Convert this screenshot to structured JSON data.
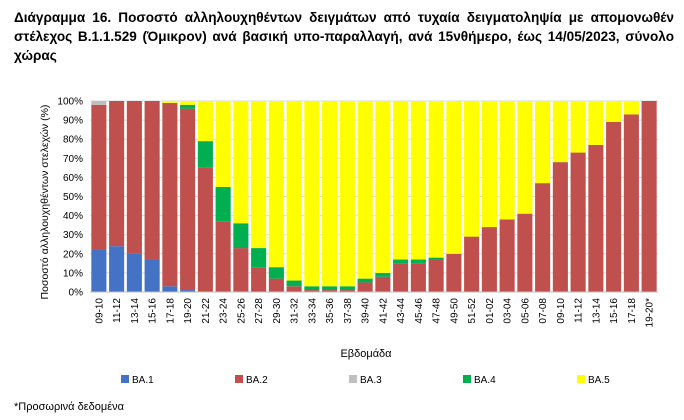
{
  "title": "Διάγραμμα 16. Ποσοστό αλληλουχηθέντων δειγμάτων από τυχαία δειγματοληψία με απομονωθέν στέλεχος Β.1.1.529 (Όμικρον) ανά βασική υπο-παραλλαγή, ανά 15νθήμερο, έως 14/05/2023, σύνολο χώρας",
  "footnote": "*Προσωρινά δεδομένα",
  "colors": {
    "BA.1": "#4472c4",
    "BA.2": "#c0504d",
    "BA.3": "#bfbfbf",
    "BA.4": "#00b050",
    "BA.5": "#ffff00"
  },
  "chart_data": {
    "type": "bar",
    "stacked": true,
    "xlabel": "Εβδομάδα",
    "ylabel": "Ποσοστό αλληλουχηθέντων στελεχών (%)",
    "ylim": [
      0,
      100
    ],
    "yticks": [
      "0%",
      "10%",
      "20%",
      "30%",
      "40%",
      "50%",
      "60%",
      "70%",
      "80%",
      "90%",
      "100%"
    ],
    "grid": true,
    "legend": "bottom",
    "categories": [
      "09-10",
      "11-12",
      "13-14",
      "15-16",
      "17-18",
      "19-20",
      "21-22",
      "23-24",
      "25-26",
      "27-28",
      "29-30",
      "31-32",
      "33-34",
      "35-36",
      "37-38",
      "39-40",
      "41-42",
      "43-44",
      "45-46",
      "47-48",
      "49-50",
      "51-52",
      "01-02",
      "03-04",
      "05-06",
      "07-08",
      "09-10",
      "11-12",
      "13-14",
      "15-16",
      "17-18",
      "19-20*"
    ],
    "series": [
      {
        "name": "BA.1",
        "values": [
          22,
          24,
          20,
          17,
          3,
          1,
          0,
          0,
          0,
          0,
          0,
          0,
          0,
          0,
          0,
          0,
          0,
          0,
          0,
          0,
          0,
          0,
          0,
          0,
          0,
          0,
          0,
          0,
          0,
          0,
          0,
          0
        ]
      },
      {
        "name": "BA.2",
        "values": [
          76,
          76,
          80,
          83,
          96,
          95,
          65,
          37,
          23,
          13,
          7,
          3,
          1,
          1,
          1,
          5,
          8,
          15,
          15,
          17,
          20,
          29,
          34,
          38,
          41,
          57,
          68,
          73,
          77,
          89,
          93,
          100
        ]
      },
      {
        "name": "BA.3",
        "values": [
          2,
          0,
          0,
          0,
          0,
          0,
          0,
          0,
          0,
          0,
          0,
          0,
          0,
          0,
          0,
          0,
          0,
          0,
          0,
          0,
          0,
          0,
          0,
          0,
          0,
          0,
          0,
          0,
          0,
          0,
          0,
          0
        ]
      },
      {
        "name": "BA.4",
        "values": [
          0,
          0,
          0,
          0,
          0,
          2,
          14,
          18,
          13,
          10,
          6,
          3,
          2,
          2,
          2,
          2,
          2,
          2,
          2,
          1,
          0,
          0,
          0,
          0,
          0,
          0,
          0,
          0,
          0,
          0,
          0,
          0
        ]
      },
      {
        "name": "BA.5",
        "values": [
          0,
          0,
          0,
          0,
          1,
          2,
          21,
          45,
          64,
          77,
          87,
          94,
          97,
          97,
          97,
          93,
          90,
          83,
          83,
          82,
          80,
          71,
          66,
          62,
          59,
          43,
          32,
          27,
          23,
          11,
          7,
          0
        ]
      }
    ]
  }
}
